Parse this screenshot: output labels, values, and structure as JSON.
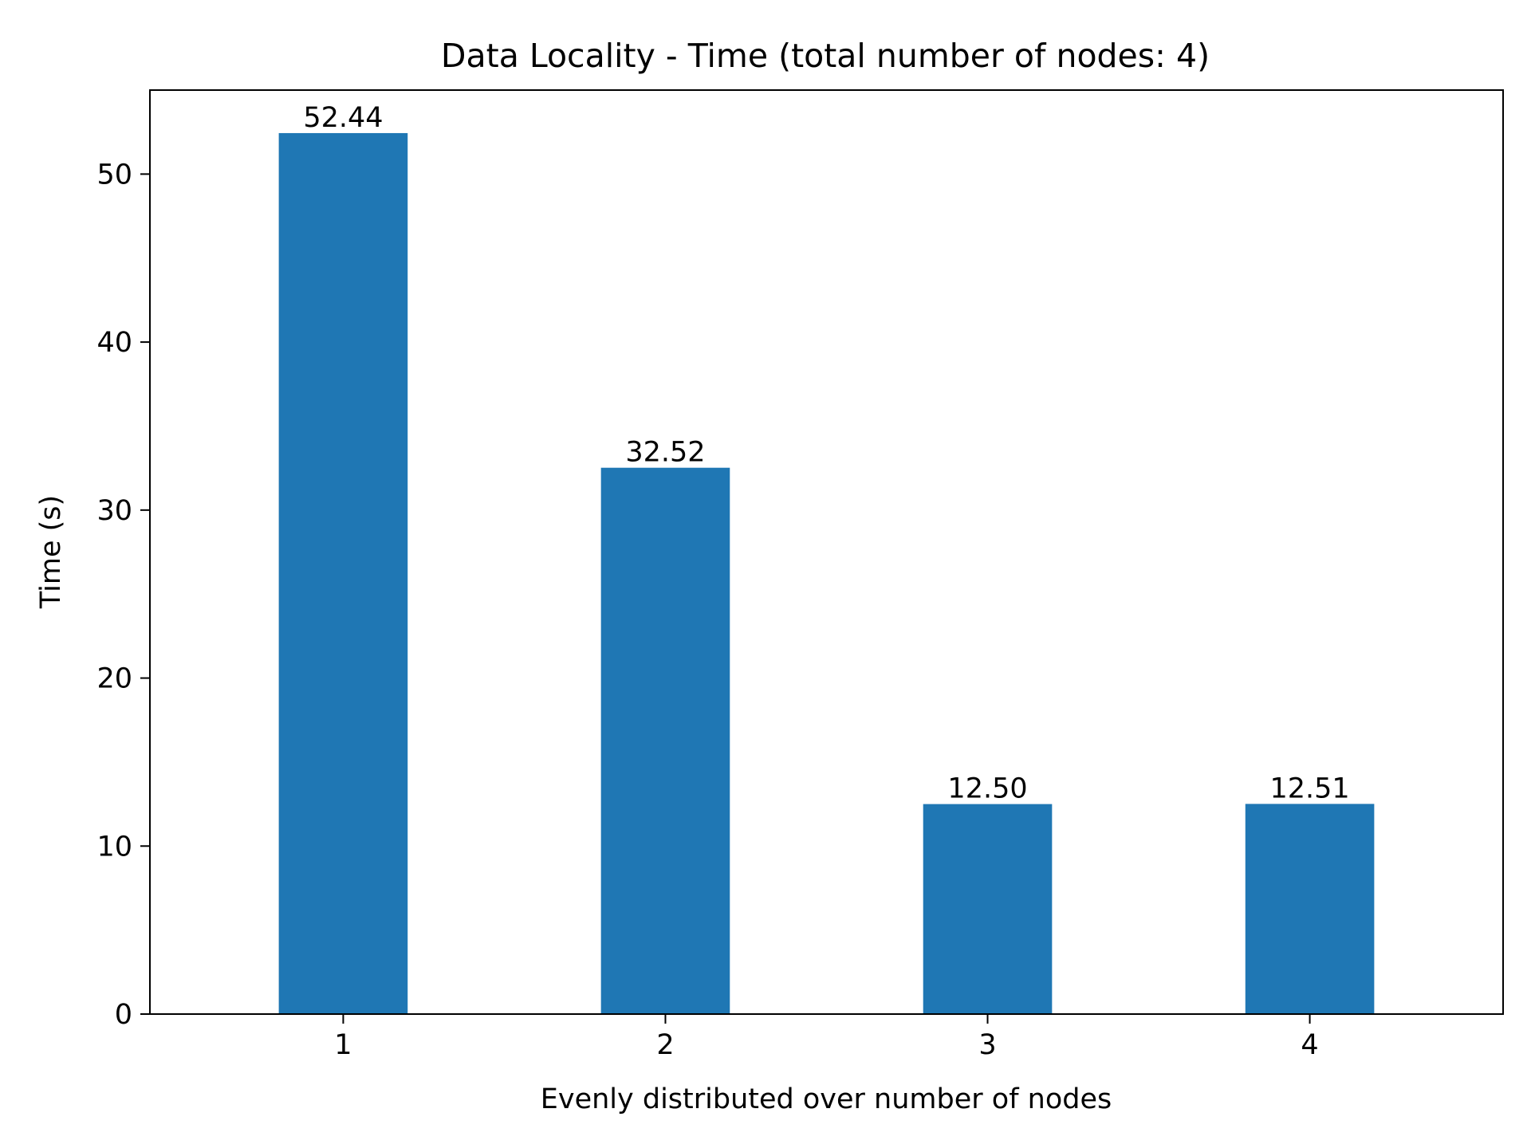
{
  "chart_data": {
    "type": "bar",
    "title": "Data Locality - Time (total number of nodes: 4)",
    "xlabel": "Evenly distributed over number of nodes",
    "ylabel": "Time (s)",
    "categories": [
      "1",
      "2",
      "3",
      "4"
    ],
    "values": [
      52.44,
      32.52,
      12.5,
      12.51
    ],
    "data_labels": [
      "52.44",
      "32.52",
      "12.50",
      "12.51"
    ],
    "ylim": [
      0,
      55
    ],
    "yticks": [
      0,
      10,
      20,
      30,
      40,
      50
    ],
    "grid": false,
    "legend": "none",
    "bar_color": "#1f77b4"
  }
}
